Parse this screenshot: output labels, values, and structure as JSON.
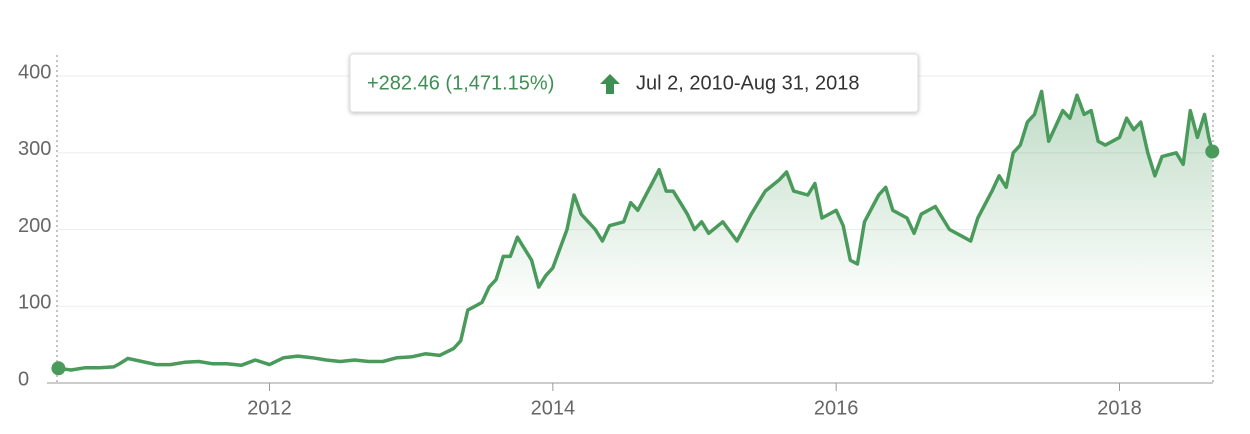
{
  "chart_data": {
    "type": "line",
    "annotation_change": "+282.46 (1,471.15%)",
    "annotation_range": "Jul 2, 2010-Aug 31, 2018",
    "x": [
      2010.51,
      2010.6,
      2010.7,
      2010.8,
      2010.9,
      2010.95,
      2011.0,
      2011.1,
      2011.2,
      2011.3,
      2011.4,
      2011.5,
      2011.6,
      2011.7,
      2011.8,
      2011.9,
      2012.0,
      2012.1,
      2012.2,
      2012.3,
      2012.4,
      2012.5,
      2012.6,
      2012.7,
      2012.8,
      2012.9,
      2013.0,
      2013.1,
      2013.2,
      2013.3,
      2013.35,
      2013.4,
      2013.45,
      2013.5,
      2013.55,
      2013.6,
      2013.65,
      2013.7,
      2013.75,
      2013.8,
      2013.85,
      2013.9,
      2013.95,
      2014.0,
      2014.05,
      2014.1,
      2014.15,
      2014.2,
      2014.3,
      2014.35,
      2014.4,
      2014.5,
      2014.55,
      2014.6,
      2014.7,
      2014.75,
      2014.8,
      2014.85,
      2014.95,
      2015.0,
      2015.05,
      2015.1,
      2015.2,
      2015.3,
      2015.4,
      2015.5,
      2015.6,
      2015.65,
      2015.7,
      2015.8,
      2015.85,
      2015.9,
      2016.0,
      2016.05,
      2016.1,
      2016.15,
      2016.2,
      2016.3,
      2016.35,
      2016.4,
      2016.5,
      2016.55,
      2016.6,
      2016.7,
      2016.8,
      2016.9,
      2016.95,
      2017.0,
      2017.1,
      2017.15,
      2017.2,
      2017.25,
      2017.3,
      2017.35,
      2017.4,
      2017.45,
      2017.5,
      2017.6,
      2017.65,
      2017.7,
      2017.75,
      2017.8,
      2017.85,
      2017.9,
      2018.0,
      2018.05,
      2018.1,
      2018.15,
      2018.2,
      2018.25,
      2018.3,
      2018.4,
      2018.45,
      2018.5,
      2018.55,
      2018.6,
      2018.63,
      2018.655
    ],
    "values": [
      19.2,
      17,
      20,
      20,
      21,
      26,
      32,
      28,
      24,
      24,
      27,
      28,
      25,
      25,
      23,
      30,
      24,
      33,
      35,
      33,
      30,
      28,
      30,
      28,
      28,
      33,
      34,
      38,
      36,
      45,
      55,
      95,
      100,
      105,
      125,
      135,
      165,
      165,
      190,
      175,
      160,
      125,
      140,
      150,
      175,
      200,
      245,
      220,
      200,
      185,
      205,
      210,
      235,
      225,
      260,
      278,
      250,
      250,
      220,
      200,
      210,
      195,
      210,
      185,
      220,
      250,
      265,
      275,
      250,
      245,
      260,
      215,
      225,
      205,
      160,
      155,
      210,
      245,
      255,
      225,
      215,
      195,
      220,
      230,
      200,
      190,
      185,
      215,
      250,
      270,
      255,
      300,
      310,
      340,
      350,
      380,
      315,
      355,
      345,
      375,
      350,
      355,
      315,
      310,
      320,
      345,
      330,
      340,
      300,
      270,
      295,
      300,
      285,
      355,
      320,
      350,
      320,
      301.66
    ],
    "color": "#4a9a5c",
    "xlim": [
      2010.5,
      2018.66
    ],
    "xticks": [
      2012,
      2014,
      2016,
      2018
    ],
    "ylim": [
      0,
      430
    ],
    "yticks": [
      0,
      100,
      200,
      300,
      400
    ],
    "grid": true
  }
}
